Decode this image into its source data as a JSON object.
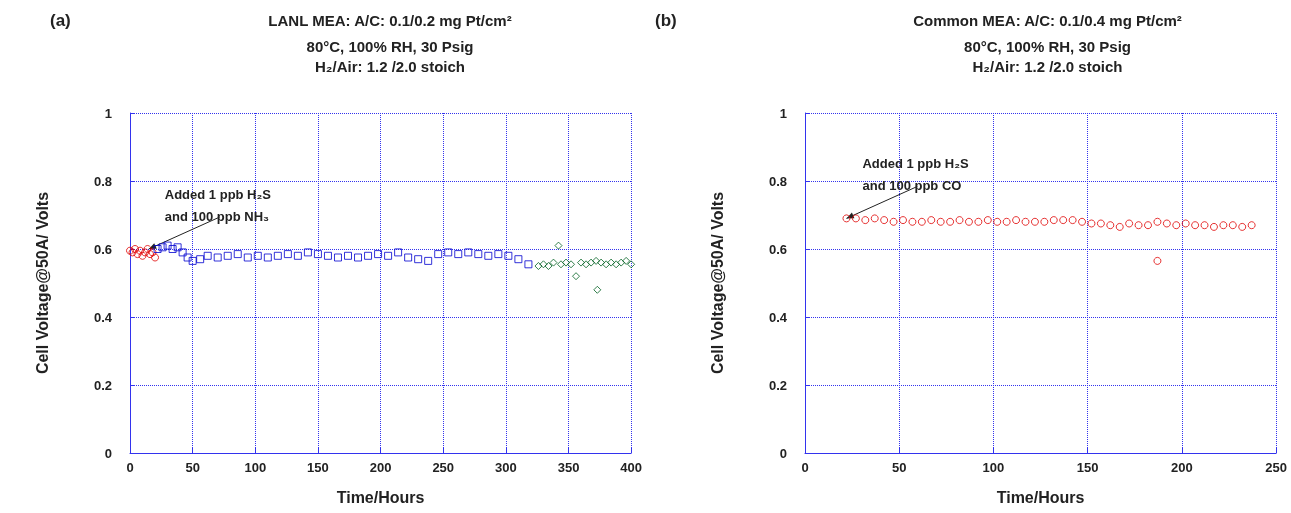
{
  "chart_data": [
    {
      "type": "scatter",
      "title": "LANL MEA: A/C: 0.1/0.2 mg Pt/cm²",
      "subtitle": "80°C, 100% RH, 30 Psig\nH₂/Air: 1.2 /2.0 stoich",
      "xlabel": "Time/Hours",
      "ylabel": "Cell Voltage@50A/ Volts",
      "annotations": [
        "(a)",
        {
          "text": "Added 1 ppb H₂S\nand 100 ppb NH₃",
          "x": 15,
          "y": 0.6
        }
      ],
      "xlim": [
        0,
        400
      ],
      "xticks": [
        0,
        50,
        100,
        150,
        200,
        250,
        300,
        350,
        400
      ],
      "ylim": [
        0,
        1
      ],
      "yticks": [
        0,
        0.2,
        0.4,
        0.6,
        0.8,
        1
      ],
      "grid": true,
      "series": [
        {
          "color": "#e00000",
          "marker": "circle",
          "x": [
            0,
            2,
            4,
            6,
            8,
            10,
            12,
            14,
            16,
            18,
            20
          ],
          "values": [
            0.595,
            0.59,
            0.6,
            0.585,
            0.595,
            0.58,
            0.59,
            0.6,
            0.585,
            0.59,
            0.575
          ]
        },
        {
          "color": "#0000d0",
          "marker": "square",
          "x": [
            22,
            26,
            30,
            34,
            38,
            42,
            46,
            50,
            56,
            62,
            70,
            78,
            86,
            94,
            102,
            110,
            118,
            126,
            134,
            142,
            150,
            158,
            166,
            174,
            182,
            190,
            198,
            206,
            214,
            222,
            230,
            238,
            246,
            254,
            262,
            270,
            278,
            286,
            294,
            302,
            310,
            318
          ],
          "values": [
            0.6,
            0.605,
            0.61,
            0.6,
            0.605,
            0.59,
            0.575,
            0.565,
            0.57,
            0.58,
            0.575,
            0.58,
            0.585,
            0.575,
            0.58,
            0.575,
            0.58,
            0.585,
            0.58,
            0.59,
            0.585,
            0.58,
            0.575,
            0.58,
            0.575,
            0.58,
            0.585,
            0.58,
            0.59,
            0.575,
            0.57,
            0.565,
            0.585,
            0.59,
            0.585,
            0.59,
            0.585,
            0.58,
            0.585,
            0.58,
            0.57,
            0.555
          ]
        },
        {
          "color": "#006020",
          "marker": "diamond",
          "x": [
            326,
            330,
            334,
            338,
            342,
            344,
            348,
            352,
            356,
            360,
            364,
            368,
            372,
            373,
            376,
            380,
            384,
            388,
            392,
            396,
            400
          ],
          "values": [
            0.55,
            0.555,
            0.55,
            0.56,
            0.61,
            0.555,
            0.56,
            0.555,
            0.52,
            0.56,
            0.555,
            0.56,
            0.565,
            0.48,
            0.56,
            0.555,
            0.56,
            0.555,
            0.56,
            0.565,
            0.555
          ]
        }
      ]
    },
    {
      "type": "scatter",
      "title": "Common MEA: A/C: 0.1/0.4 mg Pt/cm²",
      "subtitle": "80°C, 100% RH, 30 Psig\nH₂/Air: 1.2 /2.0 stoich",
      "xlabel": "Time/Hours",
      "ylabel": "Cell Voltage@50A/ Volts",
      "annotations": [
        "(b)",
        {
          "text": "Added 1 ppb H₂S\nand 100 ppb CO",
          "x": 22,
          "y": 0.69
        }
      ],
      "xlim": [
        0,
        250
      ],
      "xticks": [
        0,
        50,
        100,
        150,
        200,
        250
      ],
      "ylim": [
        0,
        1
      ],
      "yticks": [
        0,
        0.2,
        0.4,
        0.6,
        0.8,
        1
      ],
      "grid": true,
      "series": [
        {
          "color": "#e00000",
          "marker": "circle",
          "x": [
            22,
            27,
            32,
            37,
            42,
            47,
            52,
            57,
            62,
            67,
            72,
            77,
            82,
            87,
            92,
            97,
            102,
            107,
            112,
            117,
            122,
            127,
            132,
            137,
            142,
            147,
            152,
            157,
            162,
            167,
            172,
            177,
            182,
            187,
            192,
            197,
            202,
            207,
            212,
            217,
            222,
            227,
            232,
            237,
            187
          ],
          "values": [
            0.69,
            0.69,
            0.685,
            0.69,
            0.685,
            0.68,
            0.685,
            0.68,
            0.68,
            0.685,
            0.68,
            0.68,
            0.685,
            0.68,
            0.68,
            0.685,
            0.68,
            0.68,
            0.685,
            0.68,
            0.68,
            0.68,
            0.685,
            0.685,
            0.685,
            0.68,
            0.675,
            0.675,
            0.67,
            0.665,
            0.675,
            0.67,
            0.67,
            0.68,
            0.675,
            0.67,
            0.675,
            0.67,
            0.67,
            0.665,
            0.67,
            0.67,
            0.665,
            0.67,
            0.565
          ]
        }
      ]
    }
  ]
}
